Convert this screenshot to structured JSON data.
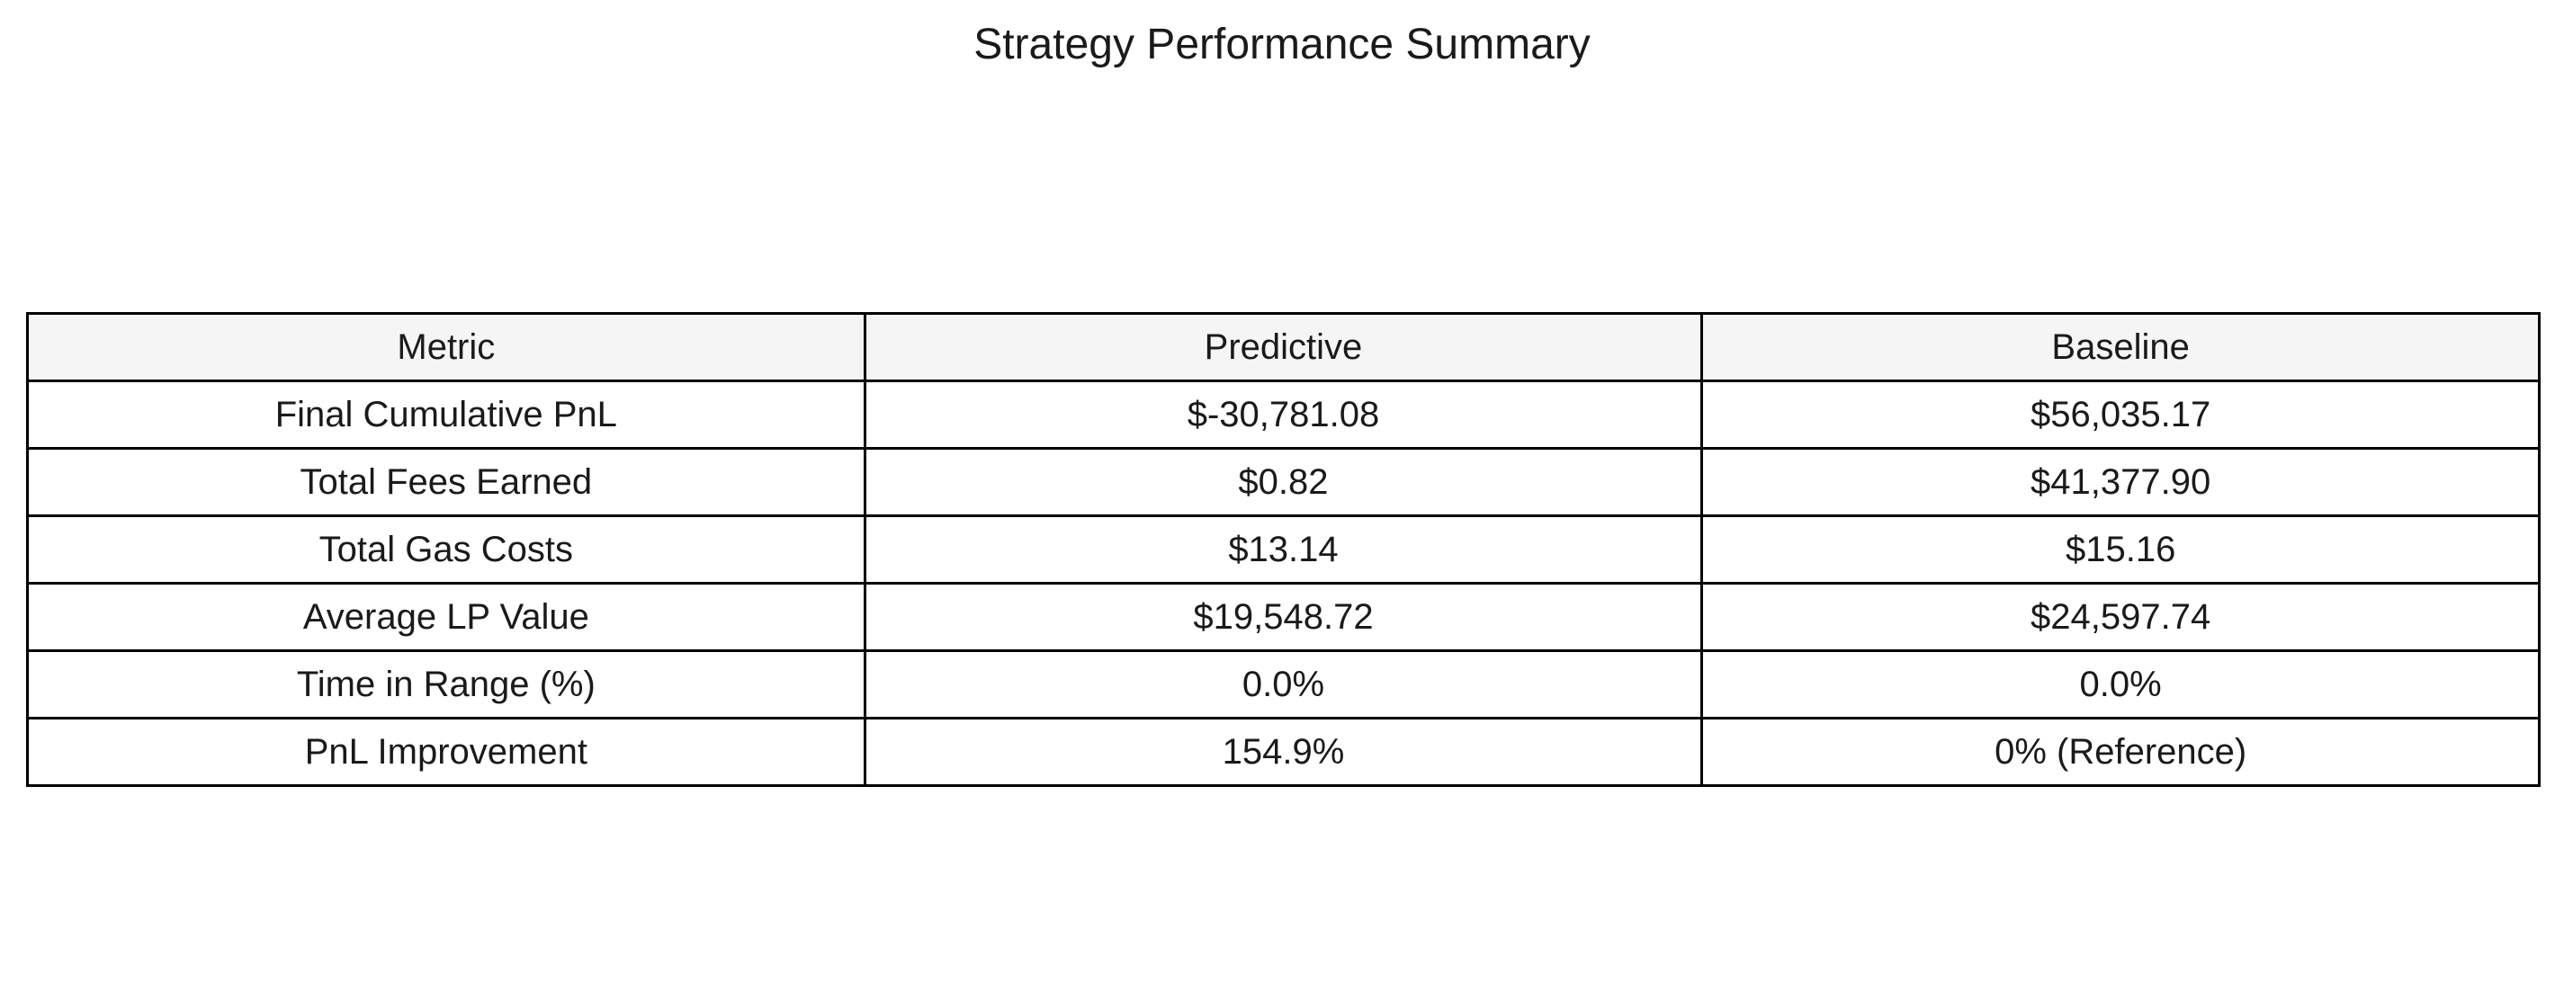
{
  "chart_data": {
    "type": "table",
    "title": "Strategy Performance Summary",
    "columns": [
      "Metric",
      "Predictive",
      "Baseline"
    ],
    "rows": [
      [
        "Final Cumulative PnL",
        "$-30,781.08",
        "$56,035.17"
      ],
      [
        "Total Fees Earned",
        "$0.82",
        "$41,377.90"
      ],
      [
        "Total Gas Costs",
        "$13.14",
        "$15.16"
      ],
      [
        "Average LP Value",
        "$19,548.72",
        "$24,597.74"
      ],
      [
        "Time in Range (%)",
        "0.0%",
        "0.0%"
      ],
      [
        "PnL Improvement",
        "154.9%",
        "0% (Reference)"
      ]
    ],
    "header_background": "#f5f5f5",
    "border_color": "#000000"
  }
}
